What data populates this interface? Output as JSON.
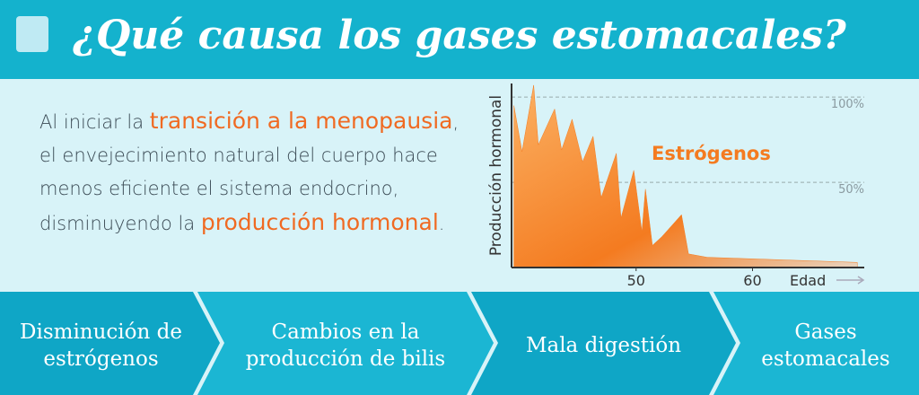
{
  "header": {
    "title": "¿Qué causa los gases estomacales?"
  },
  "intro": {
    "parts": [
      "Al iniciar la ",
      "transición a la menopausia",
      ", el envejecimiento natural del cuerpo hace menos eficiente el sistema endocrino, disminuyendo la ",
      "producción hormonal",
      "."
    ]
  },
  "chart_data": {
    "type": "area",
    "y_label": "Producción hormonal",
    "x_label": "Edad",
    "x": [
      39.5,
      40.2,
      41.2,
      41.6,
      43.0,
      43.6,
      44.5,
      45.4,
      46.3,
      47.0,
      48.3,
      48.7,
      49.8,
      50.5,
      50.8,
      51.4,
      52.2,
      53.9,
      54.5,
      56.1,
      69.0
    ],
    "series": [
      {
        "name": "Estrógenos",
        "color": "#f47b20",
        "values": [
          95,
          68,
          107,
          72,
          93,
          69,
          87,
          62,
          77,
          41,
          67,
          29,
          57,
          21,
          46,
          13,
          18,
          31,
          8,
          6,
          3
        ]
      }
    ],
    "xlim": [
      39.3,
      69.6
    ],
    "ylim": [
      0,
      108
    ],
    "xticks": [
      50,
      60
    ],
    "yticks": [
      {
        "value": 50,
        "label": "50%"
      },
      {
        "value": 100,
        "label": "100%"
      }
    ],
    "grid": true
  },
  "steps": [
    "Disminución de estrógenos",
    "Cambios en la producción de bilis",
    "Mala digestión",
    "Gases estomacales"
  ]
}
